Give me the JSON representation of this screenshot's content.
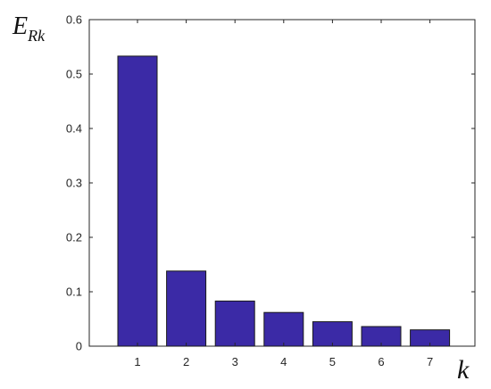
{
  "chart_data": {
    "type": "bar",
    "categories": [
      "1",
      "2",
      "3",
      "4",
      "5",
      "6",
      "7"
    ],
    "values": [
      0.533,
      0.138,
      0.083,
      0.062,
      0.045,
      0.036,
      0.03
    ],
    "xlabel": "k",
    "ylabel": {
      "main": "E",
      "subscript": "Rk"
    },
    "ylim": [
      0,
      0.6
    ],
    "yticks": [
      "0",
      "0.1",
      "0.2",
      "0.3",
      "0.4",
      "0.5",
      "0.6"
    ],
    "grid": false,
    "bar_color": "#3b2aa6",
    "bar_edge_color": "#1a1a1a"
  }
}
